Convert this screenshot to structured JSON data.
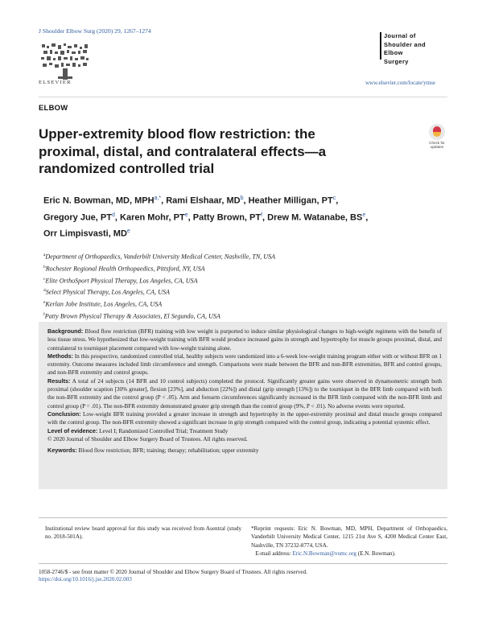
{
  "header": {
    "citation": "J Shoulder Elbow Surg (2020) 29, 1267–1274",
    "publisher": "ELSEVIER",
    "journal_logo": [
      "Journal of",
      "Shoulder and",
      "Elbow",
      "Surgery"
    ],
    "journal_url": "www.elsevier.com/locate/ymse"
  },
  "section": "ELBOW",
  "title": "Upper-extremity blood flow restriction: the proximal, distal, and contralateral effects—a randomized controlled trial",
  "check_updates": "Check for updates",
  "authors": [
    {
      "name": "Eric N. Bowman, MD, MPH",
      "sup": "a,",
      "mark": "*"
    },
    {
      "name": "Rami Elshaar, MD",
      "sup": "b"
    },
    {
      "name": "Heather Milligan, PT",
      "sup": "c"
    },
    {
      "name": "Gregory Jue, PT",
      "sup": "d"
    },
    {
      "name": "Karen Mohr, PT",
      "sup": "e"
    },
    {
      "name": "Patty Brown, PT",
      "sup": "f"
    },
    {
      "name": "Drew M. Watanabe, BS",
      "sup": "e"
    },
    {
      "name": "Orr Limpisvasti, MD",
      "sup": "e"
    }
  ],
  "affiliations": [
    {
      "sup": "a",
      "text": "Department of Orthopaedics, Vanderbilt University Medical Center, Nashville, TN, USA"
    },
    {
      "sup": "b",
      "text": "Rochester Regional Health Orthopaedics, Pittsford, NY, USA"
    },
    {
      "sup": "c",
      "text": "Elite OrthoSport Physical Therapy, Los Angeles, CA, USA"
    },
    {
      "sup": "d",
      "text": "Select Physical Therapy, Los Angeles, CA, USA"
    },
    {
      "sup": "e",
      "text": "Kerlan Jobe Institute, Los Angeles, CA, USA"
    },
    {
      "sup": "f",
      "text": "Patty Brown Physical Therapy & Associates, El Segundo, CA, USA"
    }
  ],
  "abstract": {
    "background_label": "Background:",
    "background": "Blood flow restriction (BFR) training with low weight is purported to induce similar physiological changes to high-weight regimens with the benefit of less tissue stress. We hypothesized that low-weight training with BFR would produce increased gains in strength and hypertrophy for muscle groups proximal, distal, and contralateral to tourniquet placement compared with low-weight training alone.",
    "methods_label": "Methods:",
    "methods": "In this prospective, randomized controlled trial, healthy subjects were randomized into a 6-week low-weight training program either with or without BFR on 1 extremity. Outcome measures included limb circumference and strength. Comparisons were made between the BFR and non-BFR extremities, BFR and control groups, and non-BFR extremity and control groups.",
    "results_label": "Results:",
    "results": "A total of 24 subjects (14 BFR and 10 control subjects) completed the protocol. Significantly greater gains were observed in dynamometric strength both proximal (shoulder scaption [30% greater], flexion [23%], and abduction [22%]) and distal (grip strength [13%]) to the tourniquet in the BFR limb compared with both the non-BFR extremity and the control group (P < .05). Arm and forearm circumferences significantly increased in the BFR limb compared with the non-BFR limb and control group (P = .01). The non-BFR extremity demonstrated greater grip strength than the control group (9%, P < .01). No adverse events were reported.",
    "conclusion_label": "Conclusion:",
    "conclusion": "Low-weight BFR training provided a greater increase in strength and hypertrophy in the upper-extremity proximal and distal muscle groups compared with the control group. The non-BFR extremity showed a significant increase in grip strength compared with the control group, indicating a potential systemic effect.",
    "level_label": "Level of evidence:",
    "level": "Level I; Randomized Controlled Trial; Treatment Study",
    "copyright": "© 2020 Journal of Shoulder and Elbow Surgery Board of Trustees. All rights reserved.",
    "keywords_label": "Keywords:",
    "keywords": "Blood flow restriction; BFR; training; therapy; rehabilitation; upper extremity"
  },
  "footnotes": {
    "irb": "Institutional review board approval for this study was received from Asentral (study no. 2018-501A).",
    "reprint": "*Reprint requests: Eric N. Bowman, MD, MPH, Department of Orthopaedics, Vanderbilt University Medical Center, 1215 21st Ave S, 4200 Medical Center East, Nashville, TN 37232-8774, USA.",
    "email_label": "E-mail address:",
    "email": "Eric.N.Bowman@vumc.org",
    "email_name": "(E.N. Bowman)."
  },
  "issn": "1058-2746/$ - see front matter © 2020 Journal of Shoulder and Elbow Surgery Board of Trustees. All rights reserved.",
  "doi": "https://doi.org/10.1016/j.jse.2020.02.003"
}
